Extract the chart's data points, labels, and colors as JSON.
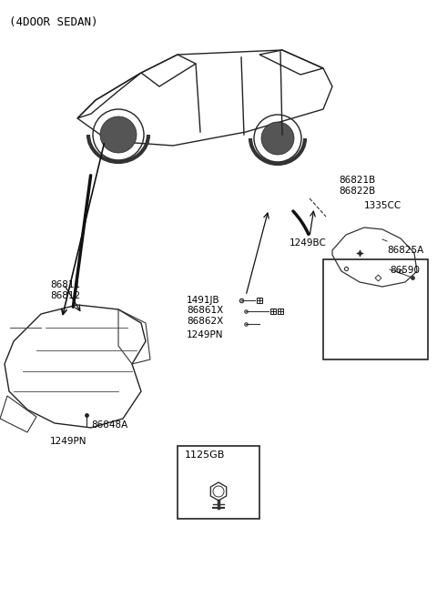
{
  "title": "(4DOOR SEDAN)",
  "bg_color": "#ffffff",
  "text_color": "#000000",
  "labels": {
    "top_left": "(4DOOR SEDAN)",
    "86821B_86822B": "86821B\n86822B",
    "1335CC": "1335CC",
    "86825A": "86825A",
    "86590": "86590",
    "1249BC": "1249BC",
    "1491JB": "1491JB",
    "86861X": "86861X",
    "86862X": "86862X",
    "1249PN_mid": "1249PN",
    "86811": "86811",
    "86812": "86812",
    "86848A": "86848A",
    "1249PN_bot": "1249PN",
    "1125GB": "1125GB"
  }
}
